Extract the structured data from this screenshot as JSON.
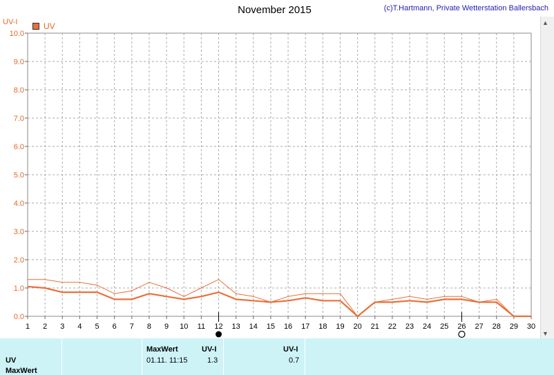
{
  "header": {
    "title": "November 2015",
    "copyright": "(c)T.Hartmann, Private Wetterstation Ballersbach",
    "y_unit_label": "UV-I",
    "legend_label": "UV"
  },
  "colors": {
    "series": "#e8703a",
    "axis_text": "#e06a2a",
    "grid": "#aaaaaa",
    "table_bg": "#cdf3f7"
  },
  "chart_data": {
    "type": "line",
    "title": "November 2015",
    "ylabel": "UV-I",
    "xlabel": "",
    "ylim": [
      0,
      10
    ],
    "xlim": [
      1,
      30
    ],
    "grid": true,
    "legend_position": "top-left",
    "y_ticks": [
      "0.0",
      "1.0",
      "2.0",
      "3.0",
      "4.0",
      "5.0",
      "6.0",
      "7.0",
      "8.0",
      "9.0",
      "10.0"
    ],
    "x_ticks": [
      "1",
      "2",
      "3",
      "4",
      "5",
      "6",
      "7",
      "8",
      "9",
      "10",
      "11",
      "12",
      "13",
      "14",
      "15",
      "16",
      "17",
      "18",
      "19",
      "20",
      "21",
      "22",
      "23",
      "24",
      "25",
      "26",
      "27",
      "28",
      "29",
      "30"
    ],
    "x": [
      1,
      2,
      3,
      4,
      5,
      6,
      7,
      8,
      9,
      10,
      11,
      12,
      13,
      14,
      15,
      16,
      17,
      18,
      19,
      20,
      21,
      22,
      23,
      24,
      25,
      26,
      27,
      28,
      29,
      30
    ],
    "series": [
      {
        "name": "UV",
        "role": "max",
        "values": [
          1.3,
          1.3,
          1.2,
          1.2,
          1.1,
          0.8,
          0.9,
          1.2,
          1.0,
          0.7,
          1.0,
          1.3,
          0.8,
          0.7,
          0.5,
          0.7,
          0.8,
          0.8,
          0.8,
          0.0,
          0.5,
          0.6,
          0.7,
          0.6,
          0.7,
          0.7,
          0.5,
          0.6,
          0.0,
          0.0
        ]
      },
      {
        "name": "UV",
        "role": "mean",
        "values": [
          1.05,
          1.0,
          0.85,
          0.85,
          0.85,
          0.6,
          0.6,
          0.8,
          0.7,
          0.6,
          0.7,
          0.85,
          0.6,
          0.55,
          0.5,
          0.55,
          0.65,
          0.55,
          0.55,
          0.0,
          0.5,
          0.5,
          0.55,
          0.5,
          0.6,
          0.6,
          0.5,
          0.5,
          0.0,
          0.0
        ]
      }
    ],
    "markers": [
      {
        "x": 12,
        "symbol": "full-moon"
      },
      {
        "x": 26,
        "symbol": "new-moon"
      }
    ]
  },
  "table": {
    "row_label_1": "UV",
    "row_label_2": "MaxWert",
    "col_max_header": "MaxWert",
    "col_unit_header": "UV-I",
    "col2_unit_header": "UV-I",
    "max_date": "01.11.  11:15",
    "max_value": "1.3",
    "second_value": "0.7"
  }
}
